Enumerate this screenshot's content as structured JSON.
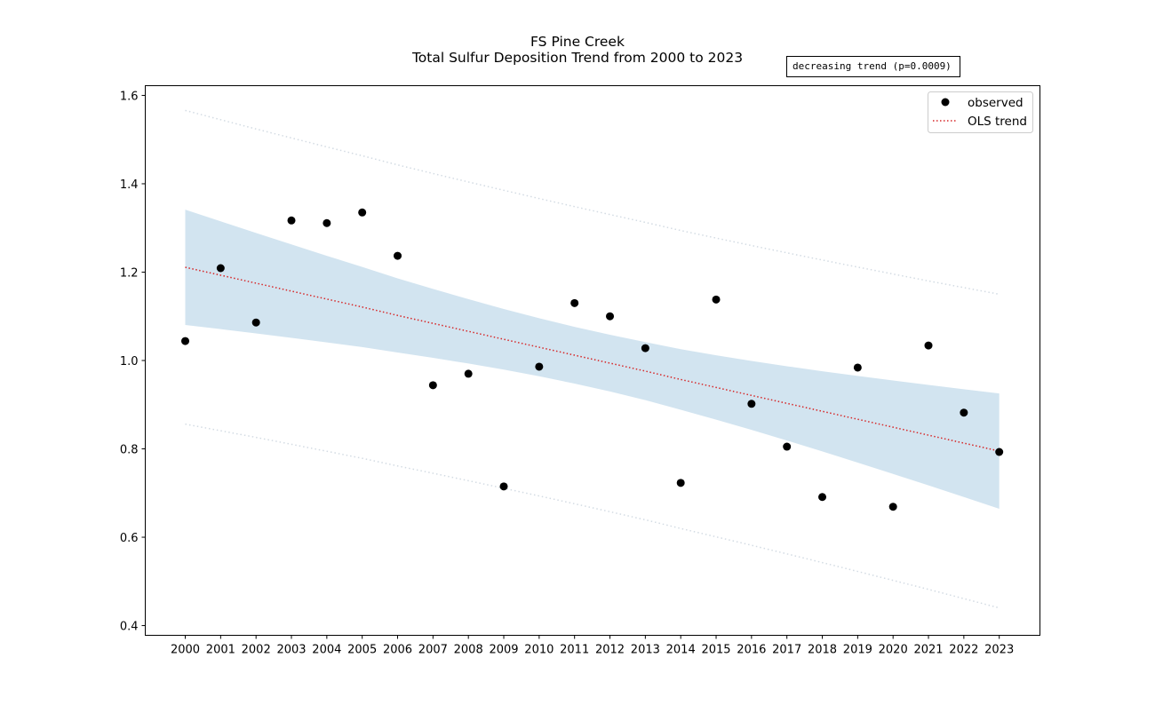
{
  "chart_data": {
    "type": "scatter",
    "title": "FS Pine Creek",
    "subtitle": "Total Sulfur Deposition Trend from 2000 to 2023",
    "xlabel": "",
    "ylabel": "",
    "annotation": "decreasing trend (p=0.0009)",
    "x": [
      2000,
      2001,
      2002,
      2003,
      2004,
      2005,
      2006,
      2007,
      2008,
      2009,
      2010,
      2011,
      2012,
      2013,
      2014,
      2015,
      2016,
      2017,
      2018,
      2019,
      2020,
      2021,
      2022,
      2023
    ],
    "xtick_labels": [
      "2000",
      "2001",
      "2002",
      "2003",
      "2004",
      "2005",
      "2006",
      "2007",
      "2008",
      "2009",
      "2010",
      "2011",
      "2012",
      "2013",
      "2014",
      "2015",
      "2016",
      "2017",
      "2018",
      "2019",
      "2020",
      "2021",
      "2022",
      "2023"
    ],
    "ytick_values": [
      0.4,
      0.6,
      0.8,
      1.0,
      1.2,
      1.4,
      1.6
    ],
    "ytick_labels": [
      "0.4",
      "0.6",
      "0.8",
      "1.0",
      "1.2",
      "1.4",
      "1.6"
    ],
    "ylim": [
      0.378,
      1.622
    ],
    "xlim": [
      1998.87,
      2024.15
    ],
    "grid": false,
    "legend": {
      "placement": "top-right",
      "entries": [
        "observed",
        "OLS trend"
      ]
    },
    "series": [
      {
        "name": "observed",
        "kind": "scatter",
        "color": "#000000",
        "values": [
          1.044,
          1.209,
          1.086,
          1.317,
          1.311,
          1.335,
          1.237,
          0.944,
          0.97,
          0.715,
          0.986,
          1.13,
          1.1,
          1.028,
          0.723,
          1.138,
          0.902,
          0.805,
          0.691,
          0.984,
          0.669,
          1.034,
          0.882,
          0.793
        ]
      },
      {
        "name": "OLS trend",
        "kind": "line",
        "color": "#d62728",
        "values": [
          1.211,
          1.193,
          1.175,
          1.157,
          1.139,
          1.121,
          1.102,
          1.084,
          1.066,
          1.048,
          1.03,
          1.012,
          0.994,
          0.976,
          0.957,
          0.939,
          0.921,
          0.903,
          0.885,
          0.867,
          0.849,
          0.831,
          0.813,
          0.795
        ]
      }
    ],
    "confidence_band": {
      "color": "#1f77b4",
      "opacity": 0.2,
      "halfwidth": [
        0.1305,
        0.122,
        0.1137,
        0.1057,
        0.098,
        0.0907,
        0.084,
        0.078,
        0.0728,
        0.0686,
        0.0657,
        0.0642,
        0.0642,
        0.0657,
        0.0686,
        0.0728,
        0.078,
        0.084,
        0.0907,
        0.098,
        0.1057,
        0.1137,
        0.122,
        0.1305
      ]
    },
    "prediction_interval": {
      "color": "#d3dbe3",
      "halfwidth": [
        0.355,
        0.352,
        0.349,
        0.3467,
        0.3444,
        0.3424,
        0.3407,
        0.3392,
        0.3381,
        0.3372,
        0.3366,
        0.3363,
        0.3363,
        0.3366,
        0.3372,
        0.3381,
        0.3392,
        0.3407,
        0.3424,
        0.3444,
        0.3467,
        0.349,
        0.352,
        0.355
      ]
    }
  }
}
